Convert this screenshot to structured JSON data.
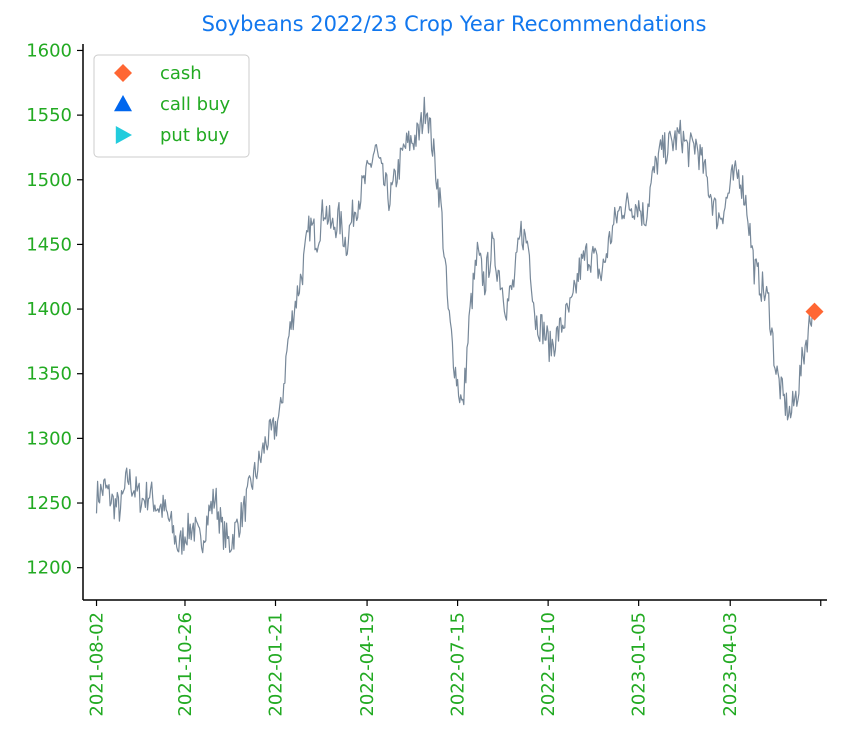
{
  "chart_data": {
    "type": "line",
    "title": "Soybeans 2022/23 Crop Year Recommendations",
    "xlabel": "",
    "ylabel": "",
    "x_ticks": [
      "2021-08-02",
      "2021-10-26",
      "2022-01-21",
      "2022-04-19",
      "2022-07-15",
      "2022-10-10",
      "2023-01-05",
      "2023-04-03"
    ],
    "x_range": [
      "2021-07-20",
      "2023-07-05"
    ],
    "y_ticks": [
      1200,
      1250,
      1300,
      1350,
      1400,
      1450,
      1500,
      1550,
      1600
    ],
    "ylim": [
      1175,
      1605
    ],
    "grid": false,
    "legend_position": "top-left",
    "series": [
      {
        "kind": "price",
        "color": "#778899",
        "points": [
          [
            "2021-08-02",
            1255
          ],
          [
            "2021-08-10",
            1262
          ],
          [
            "2021-08-18",
            1250
          ],
          [
            "2021-08-25",
            1245
          ],
          [
            "2021-09-01",
            1270
          ],
          [
            "2021-09-08",
            1260
          ],
          [
            "2021-09-15",
            1252
          ],
          [
            "2021-09-22",
            1258
          ],
          [
            "2021-09-29",
            1248
          ],
          [
            "2021-10-06",
            1245
          ],
          [
            "2021-10-13",
            1232
          ],
          [
            "2021-10-20",
            1215
          ],
          [
            "2021-10-27",
            1228
          ],
          [
            "2021-11-03",
            1232
          ],
          [
            "2021-11-10",
            1218
          ],
          [
            "2021-11-17",
            1240
          ],
          [
            "2021-11-24",
            1255
          ],
          [
            "2021-12-01",
            1228
          ],
          [
            "2021-12-08",
            1218
          ],
          [
            "2021-12-15",
            1232
          ],
          [
            "2021-12-22",
            1245
          ],
          [
            "2021-12-29",
            1265
          ],
          [
            "2022-01-05",
            1280
          ],
          [
            "2022-01-12",
            1298
          ],
          [
            "2022-01-19",
            1305
          ],
          [
            "2022-01-26",
            1320
          ],
          [
            "2022-02-02",
            1375
          ],
          [
            "2022-02-09",
            1405
          ],
          [
            "2022-02-16",
            1430
          ],
          [
            "2022-02-23",
            1465
          ],
          [
            "2022-03-02",
            1455
          ],
          [
            "2022-03-09",
            1480
          ],
          [
            "2022-03-16",
            1462
          ],
          [
            "2022-03-23",
            1470
          ],
          [
            "2022-03-30",
            1450
          ],
          [
            "2022-04-06",
            1475
          ],
          [
            "2022-04-13",
            1490
          ],
          [
            "2022-04-20",
            1505
          ],
          [
            "2022-04-27",
            1525
          ],
          [
            "2022-05-04",
            1500
          ],
          [
            "2022-05-11",
            1485
          ],
          [
            "2022-05-18",
            1505
          ],
          [
            "2022-05-25",
            1525
          ],
          [
            "2022-06-01",
            1530
          ],
          [
            "2022-06-08",
            1535
          ],
          [
            "2022-06-15",
            1560
          ],
          [
            "2022-06-22",
            1520
          ],
          [
            "2022-06-29",
            1480
          ],
          [
            "2022-07-06",
            1398
          ],
          [
            "2022-07-13",
            1352
          ],
          [
            "2022-07-20",
            1322
          ],
          [
            "2022-07-27",
            1398
          ],
          [
            "2022-08-03",
            1442
          ],
          [
            "2022-08-10",
            1420
          ],
          [
            "2022-08-17",
            1448
          ],
          [
            "2022-08-24",
            1428
          ],
          [
            "2022-08-31",
            1402
          ],
          [
            "2022-09-07",
            1420
          ],
          [
            "2022-09-14",
            1460
          ],
          [
            "2022-09-21",
            1450
          ],
          [
            "2022-09-28",
            1392
          ],
          [
            "2022-10-05",
            1385
          ],
          [
            "2022-10-12",
            1370
          ],
          [
            "2022-10-19",
            1380
          ],
          [
            "2022-10-26",
            1392
          ],
          [
            "2022-11-02",
            1402
          ],
          [
            "2022-11-09",
            1430
          ],
          [
            "2022-11-16",
            1442
          ],
          [
            "2022-11-23",
            1440
          ],
          [
            "2022-11-30",
            1425
          ],
          [
            "2022-12-07",
            1450
          ],
          [
            "2022-12-14",
            1470
          ],
          [
            "2022-12-21",
            1480
          ],
          [
            "2022-12-28",
            1480
          ],
          [
            "2023-01-04",
            1482
          ],
          [
            "2023-01-11",
            1470
          ],
          [
            "2023-01-18",
            1500
          ],
          [
            "2023-01-25",
            1520
          ],
          [
            "2023-02-01",
            1525
          ],
          [
            "2023-02-08",
            1530
          ],
          [
            "2023-02-15",
            1535
          ],
          [
            "2023-02-22",
            1522
          ],
          [
            "2023-03-01",
            1528
          ],
          [
            "2023-03-08",
            1510
          ],
          [
            "2023-03-15",
            1490
          ],
          [
            "2023-03-22",
            1470
          ],
          [
            "2023-03-29",
            1480
          ],
          [
            "2023-04-05",
            1500
          ],
          [
            "2023-04-12",
            1505
          ],
          [
            "2023-04-19",
            1480
          ],
          [
            "2023-04-26",
            1432
          ],
          [
            "2023-05-03",
            1418
          ],
          [
            "2023-05-10",
            1405
          ],
          [
            "2023-05-17",
            1352
          ],
          [
            "2023-05-24",
            1330
          ],
          [
            "2023-05-31",
            1318
          ],
          [
            "2023-06-07",
            1338
          ],
          [
            "2023-06-14",
            1372
          ],
          [
            "2023-06-21",
            1398
          ]
        ]
      }
    ],
    "legend": [
      {
        "label": "cash",
        "marker": "diamond",
        "color": "#ff6633"
      },
      {
        "label": "call buy",
        "marker": "triangle-up",
        "color": "#0066ee"
      },
      {
        "label": "put buy",
        "marker": "triangle-right",
        "color": "#22ccdd"
      }
    ],
    "markers": [
      {
        "series": "cash",
        "x": "2023-06-23",
        "y": 1398
      }
    ],
    "colors": {
      "title": "#1177ee",
      "tick_label": "#22aa22",
      "axis": "#000000",
      "price_line": "#778899"
    }
  }
}
